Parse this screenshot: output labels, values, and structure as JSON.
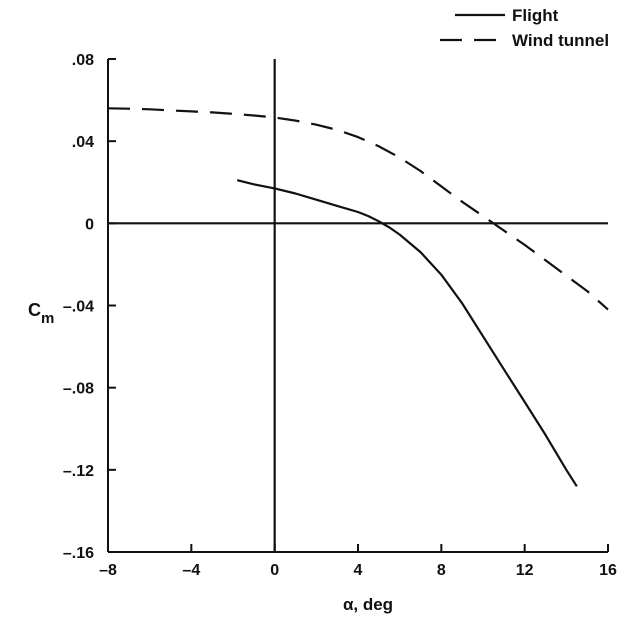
{
  "chart_data": {
    "type": "line",
    "title": "",
    "xlabel": "α, deg",
    "ylabel": {
      "main": "C",
      "sub": "m"
    },
    "xlim": [
      -8,
      16
    ],
    "ylim": [
      -0.16,
      0.08
    ],
    "x_ticks": [
      -8,
      -4,
      0,
      4,
      8,
      12,
      16
    ],
    "x_tick_labels": [
      "–8",
      "–4",
      "0",
      "4",
      "8",
      "12",
      "16"
    ],
    "y_ticks": [
      0.08,
      0.04,
      0,
      -0.04,
      -0.08,
      -0.12,
      -0.16
    ],
    "y_tick_labels": [
      ".08",
      ".04",
      "0",
      "–.04",
      "–.08",
      "–.12",
      "–.16"
    ],
    "reference_lines": {
      "x": 0,
      "y": 0
    },
    "legend": {
      "position": "top-right"
    },
    "series": [
      {
        "name": "Flight",
        "style": "solid",
        "x": [
          -1.8,
          -1,
          0,
          1,
          2,
          3,
          4,
          4.5,
          5,
          5.5,
          6,
          7,
          8,
          9,
          10,
          11,
          12,
          13,
          14,
          14.5
        ],
        "y": [
          0.021,
          0.019,
          0.017,
          0.0145,
          0.0115,
          0.0085,
          0.0055,
          0.0035,
          0.001,
          -0.002,
          -0.0055,
          -0.014,
          -0.025,
          -0.039,
          -0.055,
          -0.071,
          -0.087,
          -0.103,
          -0.12,
          -0.128
        ]
      },
      {
        "name": "Wind tunnel",
        "style": "dashed",
        "x": [
          -8,
          -7,
          -6,
          -5,
          -4,
          -3,
          -2,
          -1,
          0,
          1,
          2,
          3,
          4,
          5,
          6,
          7,
          8,
          9,
          10,
          11,
          12,
          13,
          14,
          15,
          16
        ],
        "y": [
          0.056,
          0.0558,
          0.0555,
          0.055,
          0.0545,
          0.054,
          0.0533,
          0.0525,
          0.0515,
          0.05,
          0.048,
          0.0455,
          0.042,
          0.0375,
          0.032,
          0.0255,
          0.018,
          0.0105,
          0.0035,
          -0.0035,
          -0.0105,
          -0.018,
          -0.0255,
          -0.033,
          -0.042
        ]
      }
    ]
  }
}
